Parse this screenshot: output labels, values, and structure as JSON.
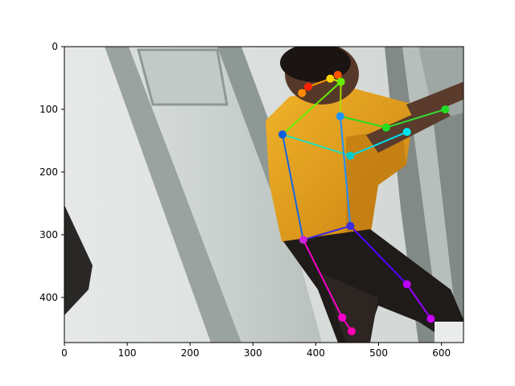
{
  "chart_data": {
    "type": "scatter",
    "subtype": "pose-skeleton-overlay",
    "title": "",
    "xlabel": "",
    "ylabel": "",
    "xlim": [
      0,
      635
    ],
    "ylim": [
      472,
      0
    ],
    "x_ticks": [
      0,
      100,
      200,
      300,
      400,
      500,
      600
    ],
    "y_ticks": [
      0,
      100,
      200,
      300,
      400
    ],
    "background": "photo: person in yellow shirt and dark pants, leaning against a light grey door frame",
    "photo_colors": {
      "wall": "#dfe3e1",
      "wall_dark": "#a9b1ae",
      "door": "#c9cfcc",
      "door_frame": "#8e9895",
      "shirt": "#e8a21c",
      "shirt_shadow": "#c47f12",
      "pants": "#1e1a18",
      "skin": "#5a3b2c",
      "hair": "#1a1412",
      "right_panel": "#7f8785"
    },
    "keypoints": [
      {
        "name": "nose",
        "x": 423,
        "y": 51,
        "color": "#ffd700"
      },
      {
        "name": "left_eye",
        "x": 435,
        "y": 45,
        "color": "#ff5500"
      },
      {
        "name": "right_eye",
        "x": 388,
        "y": 64,
        "color": "#ff2200"
      },
      {
        "name": "left_ear",
        "x": 440,
        "y": 56,
        "color": "#66ee00"
      },
      {
        "name": "right_ear",
        "x": 378,
        "y": 74,
        "color": "#ff8c00"
      },
      {
        "name": "neck",
        "x": 439,
        "y": 111,
        "color": "#1e90ff"
      },
      {
        "name": "left_shoulder",
        "x": 512,
        "y": 129,
        "color": "#22dd22"
      },
      {
        "name": "left_wrist",
        "x": 606,
        "y": 100,
        "color": "#22dd22"
      },
      {
        "name": "right_shoulder",
        "x": 347,
        "y": 140,
        "color": "#0a5fe0"
      },
      {
        "name": "right_elbow",
        "x": 455,
        "y": 174,
        "color": "#00cccc"
      },
      {
        "name": "right_wrist",
        "x": 545,
        "y": 136,
        "color": "#00e5ee"
      },
      {
        "name": "right_hip",
        "x": 455,
        "y": 286,
        "color": "#3a2de0"
      },
      {
        "name": "left_hip",
        "x": 380,
        "y": 308,
        "color": "#cc22dd"
      },
      {
        "name": "right_knee",
        "x": 545,
        "y": 379,
        "color": "#bb00ff"
      },
      {
        "name": "right_ankle",
        "x": 583,
        "y": 434,
        "color": "#cc00ff"
      },
      {
        "name": "left_knee",
        "x": 442,
        "y": 432,
        "color": "#ff00cc"
      },
      {
        "name": "left_ankle",
        "x": 457,
        "y": 454,
        "color": "#ff00b0"
      }
    ],
    "limbs": [
      {
        "from": "right_ear",
        "to": "right_eye",
        "color": "#ff4500"
      },
      {
        "from": "right_eye",
        "to": "nose",
        "color": "#ff9900"
      },
      {
        "from": "nose",
        "to": "left_ear",
        "color": "#ccee00"
      },
      {
        "from": "left_ear",
        "to": "left_eye",
        "color": "#ff7700"
      },
      {
        "from": "left_ear",
        "to": "neck",
        "color": "#aadd00"
      },
      {
        "from": "left_ear",
        "to": "right_shoulder",
        "color": "#66ee00"
      },
      {
        "from": "neck",
        "to": "left_shoulder",
        "color": "#22dd22"
      },
      {
        "from": "left_shoulder",
        "to": "left_wrist",
        "color": "#33dd33"
      },
      {
        "from": "right_shoulder",
        "to": "right_elbow",
        "color": "#22ddbb"
      },
      {
        "from": "right_elbow",
        "to": "right_wrist",
        "color": "#00ddee"
      },
      {
        "from": "neck",
        "to": "right_hip",
        "color": "#1e90ff"
      },
      {
        "from": "right_shoulder",
        "to": "left_hip",
        "color": "#1565e0"
      },
      {
        "from": "left_hip",
        "to": "right_hip",
        "color": "#3a2de0"
      },
      {
        "from": "right_hip",
        "to": "right_knee",
        "color": "#5500ff"
      },
      {
        "from": "right_knee",
        "to": "right_ankle",
        "color": "#9900ff"
      },
      {
        "from": "left_hip",
        "to": "left_knee",
        "color": "#ff00cc"
      },
      {
        "from": "left_knee",
        "to": "left_ankle",
        "color": "#ff00cc"
      }
    ]
  }
}
